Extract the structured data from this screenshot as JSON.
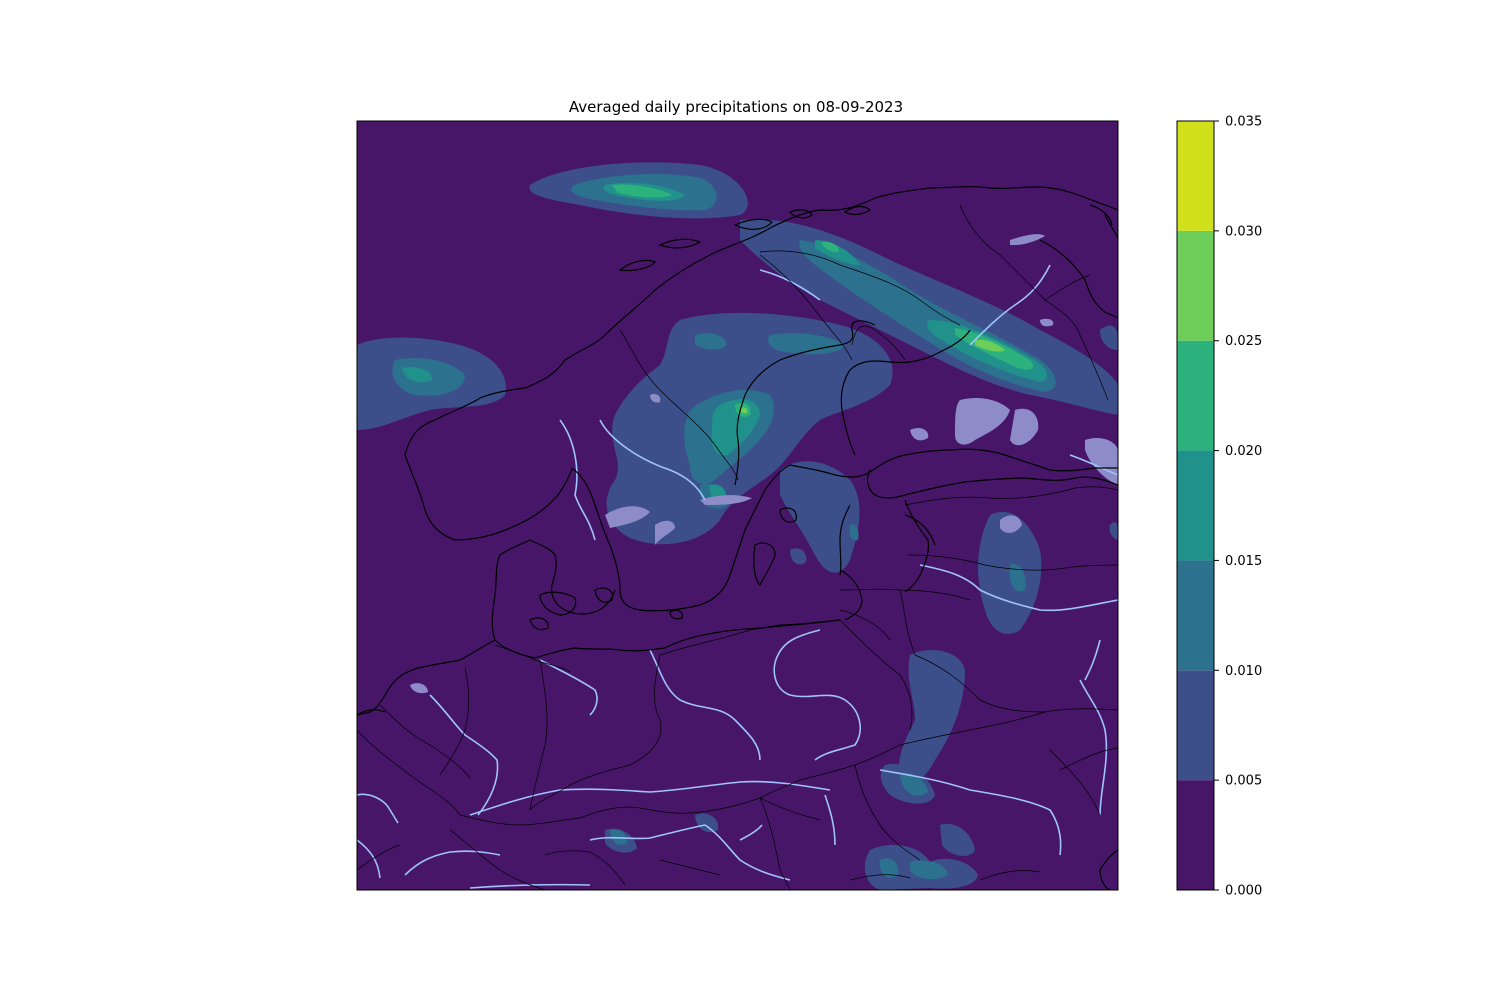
{
  "figure": {
    "title": "Averaged daily precipitations on 08-09-2023"
  },
  "colorbar": {
    "levels": [
      0.0,
      0.005,
      0.01,
      0.015,
      0.02,
      0.025,
      0.03,
      0.035
    ],
    "tick_labels": [
      "0.000",
      "0.005",
      "0.010",
      "0.015",
      "0.020",
      "0.025",
      "0.030",
      "0.035"
    ],
    "colors": [
      "#471669",
      "#3c4f8a",
      "#2c728e",
      "#21918c",
      "#2db27d",
      "#6dce59",
      "#d0e11c"
    ]
  },
  "map": {
    "background_color": "#471669",
    "coastline_color": "#000000",
    "border_color": "#000000",
    "river_color": "#9fc3ff",
    "lake_color": "#8e8cc8"
  }
}
